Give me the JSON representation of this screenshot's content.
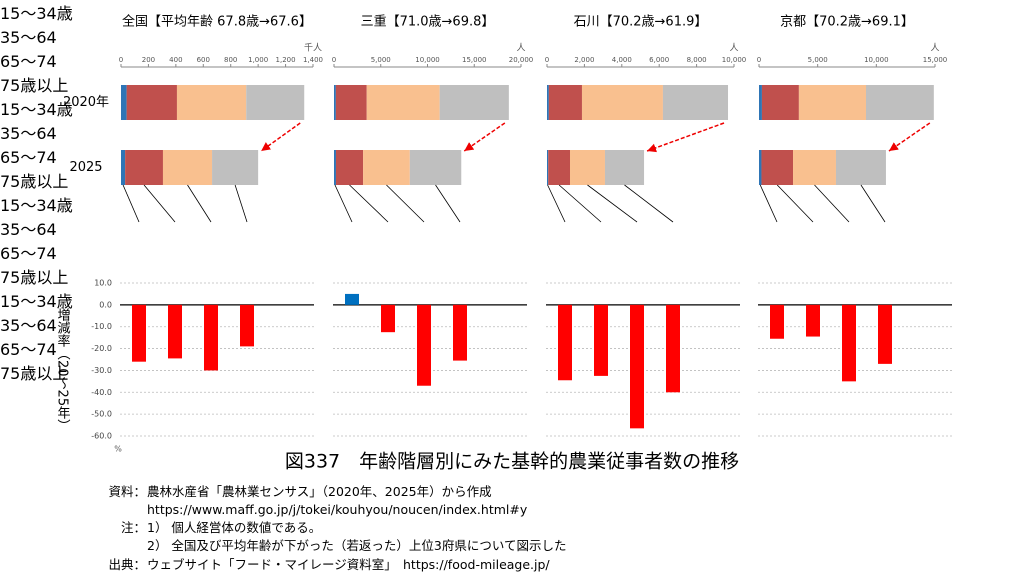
{
  "figure_title": "図337　年齢階層別にみた基幹的農業従事者数の推移",
  "source": {
    "label": "資料：",
    "lines": [
      "農林水産省「農林業センサス」（2020年、2025年）から作成",
      "https://www.maff.go.jp/j/tokei/kouhyou/noucen/index.html#y"
    ]
  },
  "notes": {
    "label": "注：",
    "lines": [
      "1） 個人経営体の数値である。",
      "2） 全国及び平均年齢が下がった（若返った）上位3府県について図示した"
    ]
  },
  "credit": {
    "label": "出典：",
    "text": "ウェブサイト「フード・マイレージ資料室」　https://food-mileage.jp/"
  },
  "chart_data": [
    {
      "type": "stacked_barh",
      "title": "全国【平均年齢 67.8歳→67.6】",
      "unit": "千人",
      "categories": [
        "2020年",
        "2025"
      ],
      "xlim": [
        0,
        1400
      ],
      "xticks": [
        0,
        200,
        400,
        600,
        800,
        {
          "value": 1000,
          "label": "1,000"
        },
        {
          "value": 1200,
          "label": "1,200"
        },
        {
          "value": 1400,
          "label": "1,400"
        }
      ],
      "series": [
        {
          "name": "15～34歳",
          "color": "#2e75b6",
          "values": [
            41,
            30
          ]
        },
        {
          "name": "35～64",
          "color": "#c0504d",
          "values": [
            367,
            276
          ]
        },
        {
          "name": "65～74",
          "color": "#f9c08f",
          "values": [
            505,
            358
          ]
        },
        {
          "name": "75歳以上",
          "color": "#bfbfbf",
          "values": [
            423,
            336
          ]
        }
      ]
    },
    {
      "type": "stacked_barh",
      "title": "三重【71.0歳→69.8】",
      "unit": "人",
      "xlim": [
        0,
        20000
      ],
      "xticks": [
        0,
        {
          "value": 5000,
          "label": "5,000"
        },
        {
          "value": 10000,
          "label": "10,000"
        },
        {
          "value": 15000,
          "label": "15,000"
        },
        {
          "value": 20000,
          "label": "20,000"
        }
      ],
      "series": [
        {
          "name": "15～34歳",
          "color": "#2e75b6",
          "values": [
            200,
            210
          ]
        },
        {
          "name": "35～64",
          "color": "#c0504d",
          "values": [
            3300,
            2900
          ]
        },
        {
          "name": "65～74",
          "color": "#f9c08f",
          "values": [
            7800,
            5000
          ]
        },
        {
          "name": "75歳以上",
          "color": "#bfbfbf",
          "values": [
            7400,
            5500
          ]
        }
      ]
    },
    {
      "type": "stacked_barh",
      "title": "石川【70.2歳→61.9】",
      "unit": "人",
      "xlim": [
        0,
        10000
      ],
      "xticks": [
        0,
        {
          "value": 2000,
          "label": "2,000"
        },
        {
          "value": 4000,
          "label": "4,000"
        },
        {
          "value": 6000,
          "label": "6,000"
        },
        {
          "value": 8000,
          "label": "8,000"
        },
        {
          "value": 10000,
          "label": "10,000"
        }
      ],
      "series": [
        {
          "name": "15～34歳",
          "color": "#2e75b6",
          "values": [
            100,
            65
          ]
        },
        {
          "name": "35～64",
          "color": "#c0504d",
          "values": [
            1770,
            1165
          ]
        },
        {
          "name": "65～74",
          "color": "#f9c08f",
          "values": [
            4330,
            1870
          ]
        },
        {
          "name": "75歳以上",
          "color": "#bfbfbf",
          "values": [
            3480,
            2090
          ]
        }
      ]
    },
    {
      "type": "stacked_barh",
      "title": "京都【70.2歳→69.1】",
      "unit": "人",
      "xlim": [
        0,
        15000
      ],
      "xticks": [
        0,
        {
          "value": 5000,
          "label": "5,000"
        },
        {
          "value": 10000,
          "label": "10,000"
        },
        {
          "value": 15000,
          "label": "15,000"
        }
      ],
      "series": [
        {
          "name": "15～34歳",
          "color": "#2e75b6",
          "values": [
            250,
            210
          ]
        },
        {
          "name": "35～64",
          "color": "#c0504d",
          "values": [
            3150,
            2690
          ]
        },
        {
          "name": "65～74",
          "color": "#f9c08f",
          "values": [
            5720,
            3660
          ]
        },
        {
          "name": "75歳以上",
          "color": "#bfbfbf",
          "values": [
            5780,
            4260
          ]
        }
      ]
    },
    {
      "type": "bar",
      "y_label": "増減率（20～25年）",
      "unit": "%",
      "ylim": [
        -60,
        10
      ],
      "yticks": [
        {
          "value": 10,
          "label": "10.0"
        },
        {
          "value": 0,
          "label": "0.0"
        },
        {
          "value": -10,
          "label": "-10.0"
        },
        {
          "value": -20,
          "label": "-20.0"
        },
        {
          "value": -30,
          "label": "-30.0"
        },
        {
          "value": -40,
          "label": "-40.0"
        },
        {
          "value": -50,
          "label": "-50.0"
        },
        {
          "value": -60,
          "label": "-60.0"
        }
      ],
      "values": [
        -26,
        -24.5,
        -30,
        -19
      ],
      "colors": [
        "#ff0000",
        "#ff0000",
        "#ff0000",
        "#ff0000"
      ]
    },
    {
      "type": "bar",
      "ylim": [
        -60,
        10
      ],
      "yticks": [
        10,
        0,
        -10,
        -20,
        -30,
        -40,
        -50,
        -60
      ],
      "values": [
        5,
        -12.5,
        -37,
        -25.5
      ],
      "colors": [
        "#0070c0",
        "#ff0000",
        "#ff0000",
        "#ff0000"
      ]
    },
    {
      "type": "bar",
      "ylim": [
        -60,
        10
      ],
      "yticks": [
        10,
        0,
        -10,
        -20,
        -30,
        -40,
        -50,
        -60
      ],
      "values": [
        -34.5,
        -32.5,
        -56.5,
        -40
      ],
      "colors": [
        "#ff0000",
        "#ff0000",
        "#ff0000",
        "#ff0000"
      ]
    },
    {
      "type": "bar",
      "ylim": [
        -60,
        10
      ],
      "yticks": [
        10,
        0,
        -10,
        -20,
        -30,
        -40,
        -50,
        -60
      ],
      "values": [
        -15.5,
        -14.5,
        -35,
        -27
      ],
      "colors": [
        "#ff0000",
        "#ff0000",
        "#ff0000",
        "#ff0000"
      ]
    }
  ]
}
